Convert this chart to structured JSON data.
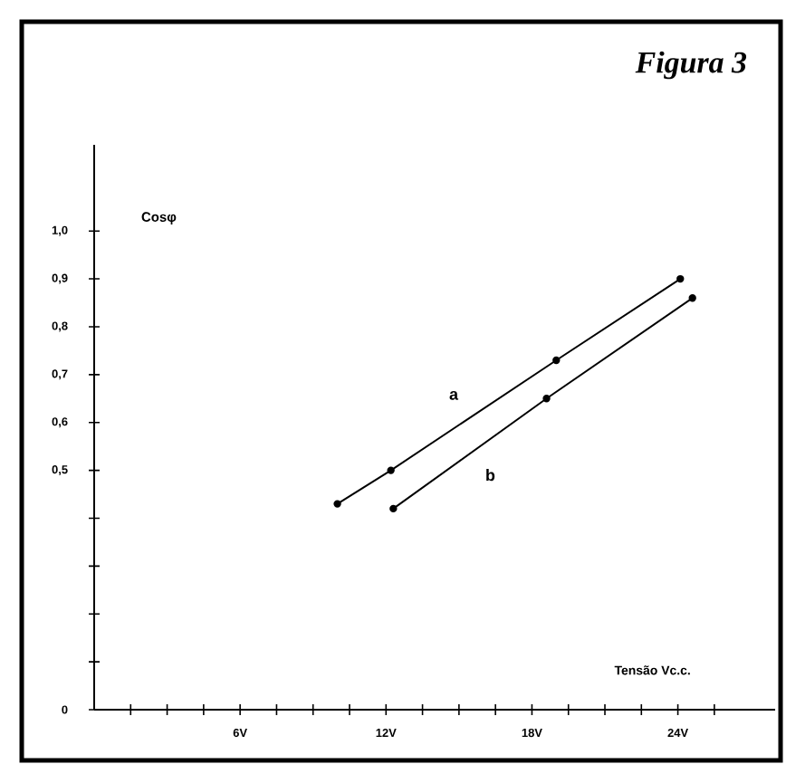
{
  "chart_data": {
    "type": "line",
    "title": "Figura 3",
    "xlabel": "Tensão Vc.c.",
    "ylabel": "Cosφ",
    "x": [
      10.0,
      12.2,
      19.0,
      24.1
    ],
    "series": [
      {
        "name": "a",
        "color": "#000000",
        "values": [
          0.43,
          0.5,
          0.73,
          0.9
        ]
      },
      {
        "name": "b",
        "color": "#000000",
        "x": [
          12.3,
          18.6,
          24.6
        ],
        "values": [
          0.42,
          0.65,
          0.86
        ]
      }
    ],
    "xlim": [
      0,
      28
    ],
    "ylim": [
      0,
      1.18
    ],
    "xticks": [
      {
        "value": 1.5,
        "label": null
      },
      {
        "value": 3,
        "label": null
      },
      {
        "value": 4.5,
        "label": null
      },
      {
        "value": 6,
        "label": "6V"
      },
      {
        "value": 7.5,
        "label": null
      },
      {
        "value": 9,
        "label": null
      },
      {
        "value": 10.5,
        "label": null
      },
      {
        "value": 12,
        "label": "12V"
      },
      {
        "value": 13.5,
        "label": null
      },
      {
        "value": 15,
        "label": null
      },
      {
        "value": 16.5,
        "label": null
      },
      {
        "value": 18,
        "label": "18V"
      },
      {
        "value": 19.5,
        "label": null
      },
      {
        "value": 21,
        "label": null
      },
      {
        "value": 22.5,
        "label": null
      },
      {
        "value": 24,
        "label": "24V"
      },
      {
        "value": 25.5,
        "label": null
      }
    ],
    "yticks": [
      {
        "value": 0,
        "label": "0"
      },
      {
        "value": 0.1,
        "label": null
      },
      {
        "value": 0.2,
        "label": null
      },
      {
        "value": 0.3,
        "label": null
      },
      {
        "value": 0.4,
        "label": null
      },
      {
        "value": 0.5,
        "label": "0,5"
      },
      {
        "value": 0.6,
        "label": "0,6"
      },
      {
        "value": 0.7,
        "label": "0,7"
      },
      {
        "value": 0.8,
        "label": "0,8"
      },
      {
        "value": 0.9,
        "label": "0,9"
      },
      {
        "value": 1.0,
        "label": "1,0"
      }
    ],
    "grid": false,
    "legend": false,
    "marker": "circle",
    "line_style": "solid"
  }
}
